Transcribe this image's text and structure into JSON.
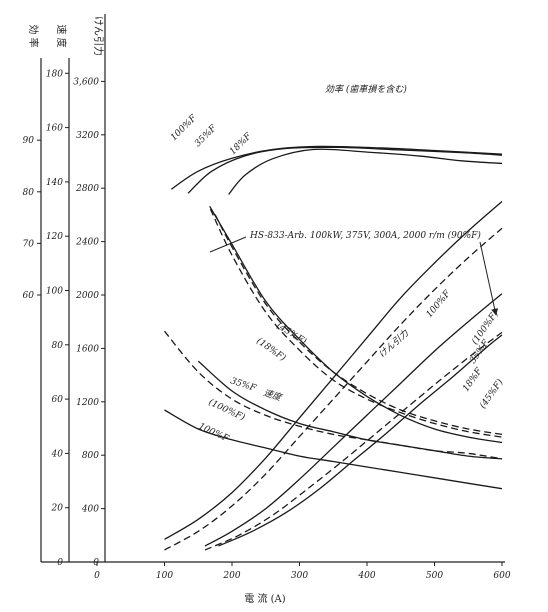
{
  "chart_data": {
    "type": "line",
    "xlabel": "電 流 (A)",
    "x_ticks": [
      0,
      100,
      200,
      300,
      400,
      500,
      600
    ],
    "xlim": [
      0,
      600
    ],
    "axes": [
      {
        "key": "efficiency",
        "header": "効 率",
        "ticks": [
          60,
          70,
          80,
          90
        ],
        "ylim": [
          60,
          95
        ]
      },
      {
        "key": "speed",
        "header": "速 度",
        "ticks": [
          0,
          20,
          40,
          60,
          80,
          100,
          120,
          140,
          160,
          180
        ],
        "ylim": [
          0,
          190
        ]
      },
      {
        "key": "force",
        "header": "けん引力",
        "ticks": [
          "0",
          "400",
          "800",
          "1200",
          "1600",
          "2000",
          "2400",
          "2800",
          "3200",
          "3,600"
        ],
        "tick_values": [
          0,
          400,
          800,
          1200,
          1600,
          2000,
          2400,
          2800,
          3200,
          3600
        ],
        "ylim": [
          0,
          3800
        ]
      }
    ],
    "series": [
      {
        "group": "efficiency",
        "axis": "efficiency",
        "label": "100%F",
        "dashed": false,
        "x": [
          110,
          150,
          200,
          260,
          330,
          420,
          500,
          600
        ],
        "y": [
          80.5,
          84,
          86.5,
          88.2,
          88.8,
          88.5,
          88,
          87.3
        ]
      },
      {
        "group": "efficiency",
        "axis": "efficiency",
        "label": "35%F",
        "dashed": false,
        "x": [
          135,
          170,
          220,
          280,
          360,
          450,
          540,
          600
        ],
        "y": [
          79.7,
          84,
          87,
          88.4,
          88.6,
          88.1,
          87.6,
          87.1
        ]
      },
      {
        "group": "efficiency",
        "axis": "efficiency",
        "label": "18%F",
        "dashed": false,
        "x": [
          195,
          220,
          260,
          320,
          400,
          480,
          540,
          600
        ],
        "y": [
          79.5,
          83.3,
          86.4,
          88.2,
          87.7,
          86.9,
          86.0,
          85.5
        ]
      },
      {
        "group": "force",
        "axis": "force",
        "label": "100%F",
        "dashed": false,
        "x": [
          100,
          150,
          200,
          250,
          300,
          350,
          400,
          450,
          500,
          550,
          600
        ],
        "y": [
          170,
          320,
          520,
          780,
          1080,
          1380,
          1680,
          1980,
          2240,
          2480,
          2700
        ]
      },
      {
        "group": "force",
        "axis": "force",
        "label": "(100%F)",
        "dashed": true,
        "x": [
          100,
          150,
          200,
          250,
          300,
          350,
          400,
          450,
          500,
          550,
          600
        ],
        "y": [
          90,
          230,
          420,
          660,
          940,
          1220,
          1500,
          1780,
          2040,
          2280,
          2500
        ]
      },
      {
        "group": "force",
        "axis": "force",
        "label": "35%F",
        "dashed": false,
        "x": [
          160,
          200,
          250,
          300,
          350,
          400,
          450,
          500,
          550,
          600
        ],
        "y": [
          120,
          230,
          400,
          620,
          860,
          1100,
          1340,
          1580,
          1800,
          2010
        ]
      },
      {
        "group": "force",
        "axis": "force",
        "label": "18%F",
        "dashed": false,
        "x": [
          180,
          230,
          280,
          330,
          380,
          430,
          480,
          530,
          580,
          600
        ],
        "y": [
          120,
          230,
          370,
          550,
          760,
          970,
          1190,
          1400,
          1620,
          1700
        ]
      },
      {
        "group": "force",
        "axis": "force",
        "label": "(45%F)",
        "dashed": true,
        "x": [
          160,
          210,
          260,
          310,
          360,
          410,
          460,
          510,
          560,
          600
        ],
        "y": [
          90,
          200,
          350,
          540,
          740,
          950,
          1160,
          1370,
          1570,
          1720
        ]
      },
      {
        "group": "speed",
        "axis": "speed",
        "label": "HS-833-Arb. 100kW, 375V, 300A, 2000 r/m (90%F)",
        "dashed": false,
        "x": [
          167,
          200,
          250,
          300,
          350,
          400,
          450,
          500,
          550,
          600
        ],
        "y": [
          131,
          117,
          96,
          82,
          70,
          61,
          54,
          49,
          46,
          44
        ]
      },
      {
        "group": "speed",
        "axis": "speed",
        "label": "(45%F)",
        "dashed": true,
        "x": [
          168,
          200,
          250,
          300,
          350,
          400,
          450,
          500,
          550,
          600
        ],
        "y": [
          130,
          113,
          92,
          78,
          67,
          60,
          55,
          51,
          48,
          46
        ]
      },
      {
        "group": "speed",
        "axis": "speed",
        "label": "(18%F)",
        "dashed": true,
        "x": [
          175,
          200,
          250,
          300,
          350,
          400,
          450,
          500,
          550,
          600
        ],
        "y": [
          128,
          116,
          95,
          81,
          70,
          62,
          56,
          52,
          49,
          47
        ]
      },
      {
        "group": "speed",
        "axis": "speed",
        "label": "35%F",
        "dashed": false,
        "x": [
          150,
          200,
          250,
          300,
          350,
          400,
          450,
          500,
          550,
          600
        ],
        "y": [
          74,
          63,
          56,
          51,
          48,
          45,
          43,
          41,
          39,
          38
        ]
      },
      {
        "group": "speed",
        "axis": "speed",
        "label": "(100%F)",
        "dashed": true,
        "x": [
          100,
          150,
          200,
          250,
          300,
          350,
          400,
          450,
          500,
          550,
          600
        ],
        "y": [
          85,
          70,
          60,
          54,
          50,
          47,
          45,
          43,
          41,
          40,
          38
        ]
      },
      {
        "group": "speed",
        "axis": "speed",
        "label": "100%F",
        "dashed": false,
        "x": [
          100,
          150,
          200,
          250,
          300,
          350,
          400,
          450,
          500,
          550,
          600
        ],
        "y": [
          56,
          49,
          45,
          42,
          39,
          37,
          35,
          33,
          31,
          29,
          27
        ]
      }
    ],
    "annotations": {
      "efficiency_title": "効率 (歯車損を含む)",
      "force_label": "けん引力",
      "speed_label": "速度",
      "motor_spec": "HS-833-Arb. 100kW, 375V, 300A, 2000 r/m (90%F)",
      "eff_100": "100%F",
      "eff_35": "35%F",
      "eff_18": "18%F",
      "force_100": "100%F",
      "force_100_paren": "(100%F)",
      "force_35": "35%F",
      "force_18": "18%F",
      "force_45_paren": "(45%F)",
      "speed_45_paren": "(45%F)",
      "speed_18_paren": "(18%F)",
      "speed_35": "35%F",
      "speed_100_paren": "(100%F)",
      "speed_100": "100%F"
    }
  }
}
